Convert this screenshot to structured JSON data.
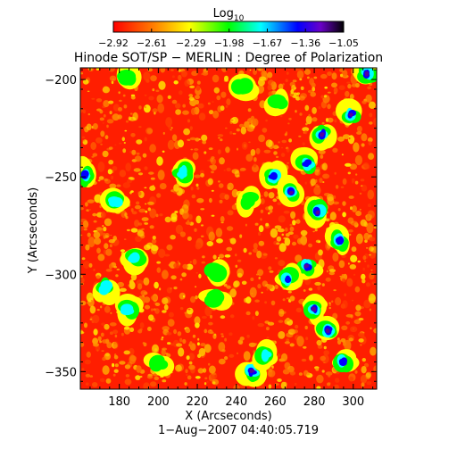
{
  "colorbar": {
    "label_base": "Log",
    "label_sub": "10",
    "ticks": [
      -2.92,
      -2.61,
      -2.29,
      -1.98,
      -1.67,
      -1.36,
      -1.05
    ],
    "tick_labels": [
      "−2.92",
      "−2.61",
      "−2.29",
      "−1.98",
      "−1.67",
      "−1.36",
      "−1.05"
    ],
    "range": [
      -2.92,
      -1.05
    ],
    "colormap": "rainbow (red → yellow → green → cyan → blue → black)"
  },
  "chart_data": {
    "type": "heatmap",
    "title": "Hinode SOT/SP − MERLIN : Degree of Polarization",
    "xlabel": "X (Arcseconds)",
    "ylabel": "Y (Arcseconds)",
    "xlim": [
      160,
      312
    ],
    "ylim": [
      -359,
      -194
    ],
    "x_ticks": [
      180,
      200,
      220,
      240,
      260,
      280,
      300
    ],
    "x_tick_labels": [
      "180",
      "200",
      "220",
      "240",
      "260",
      "280",
      "300"
    ],
    "y_ticks": [
      -200,
      -250,
      -300,
      -350
    ],
    "y_tick_labels": [
      "−200",
      "−250",
      "−300",
      "−350"
    ],
    "value_range": [
      -2.92,
      -1.05
    ],
    "background_level": -2.92,
    "high_polarization_features": [
      {
        "x": 307,
        "y": -197,
        "level": -1.05
      },
      {
        "x": 299,
        "y": -218,
        "level": -1.1
      },
      {
        "x": 284,
        "y": -228,
        "level": -1.1
      },
      {
        "x": 276,
        "y": -243,
        "level": -1.3
      },
      {
        "x": 259,
        "y": -250,
        "level": -1.4
      },
      {
        "x": 268,
        "y": -258,
        "level": -1.2
      },
      {
        "x": 282,
        "y": -268,
        "level": -1.1
      },
      {
        "x": 293,
        "y": -283,
        "level": -1.3
      },
      {
        "x": 276,
        "y": -296,
        "level": -1.1
      },
      {
        "x": 266,
        "y": -302,
        "level": -1.3
      },
      {
        "x": 280,
        "y": -318,
        "level": -1.05
      },
      {
        "x": 287,
        "y": -329,
        "level": -1.2
      },
      {
        "x": 295,
        "y": -345,
        "level": -1.3
      },
      {
        "x": 248,
        "y": -350,
        "level": -1.1
      },
      {
        "x": 255,
        "y": -342,
        "level": -1.5
      },
      {
        "x": 162,
        "y": -249,
        "level": -1.4
      },
      {
        "x": 178,
        "y": -262,
        "level": -1.7
      },
      {
        "x": 213,
        "y": -248,
        "level": -1.6
      },
      {
        "x": 188,
        "y": -292,
        "level": -1.6
      },
      {
        "x": 185,
        "y": -318,
        "level": -1.5
      },
      {
        "x": 173,
        "y": -307,
        "level": -1.6
      },
      {
        "x": 200,
        "y": -345,
        "level": -1.8
      },
      {
        "x": 230,
        "y": -312,
        "level": -1.8
      },
      {
        "x": 229,
        "y": -298,
        "level": -2.0
      },
      {
        "x": 184,
        "y": -200,
        "level": -1.9
      },
      {
        "x": 243,
        "y": -205,
        "level": -2.0
      },
      {
        "x": 262,
        "y": -212,
        "level": -2.0
      },
      {
        "x": 247,
        "y": -262,
        "level": -2.0
      }
    ]
  },
  "footer": {
    "timestamp": "1−Aug−2007 04:40:05.719"
  }
}
